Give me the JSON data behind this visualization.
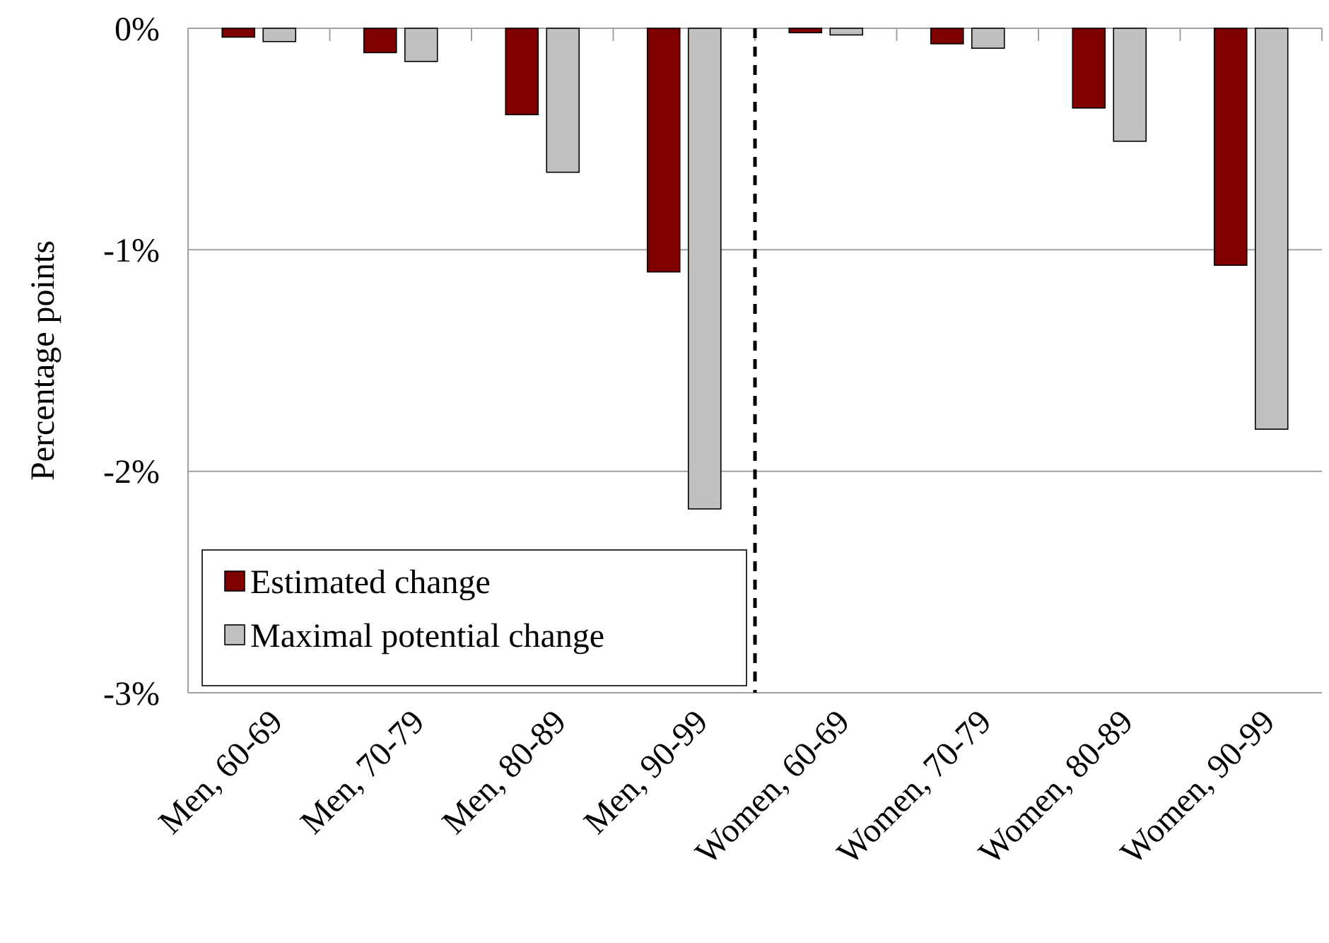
{
  "chart_data": {
    "type": "bar",
    "ylabel": "Percentage points",
    "categories": [
      "Men, 60-69",
      "Men, 70-79",
      "Men, 80-89",
      "Men, 90-99",
      "Women, 60-69",
      "Women, 70-79",
      "Women, 80-89",
      "Women, 90-99"
    ],
    "series": [
      {
        "name": "Estimated change",
        "color": "#800000",
        "values": [
          -0.04,
          -0.11,
          -0.39,
          -1.1,
          -0.02,
          -0.07,
          -0.36,
          -1.07
        ]
      },
      {
        "name": "Maximal potential change",
        "color": "#c0c0c0",
        "values": [
          -0.06,
          -0.15,
          -0.65,
          -2.17,
          -0.03,
          -0.09,
          -0.51,
          -1.81
        ]
      }
    ],
    "ylim": [
      -3,
      0
    ],
    "yticks": [
      {
        "value": 0,
        "label": "0%"
      },
      {
        "value": -1,
        "label": "-1%"
      },
      {
        "value": -2,
        "label": "-2%"
      },
      {
        "value": -3,
        "label": "-3%"
      }
    ],
    "grid": "y",
    "legend": "bottom left"
  }
}
